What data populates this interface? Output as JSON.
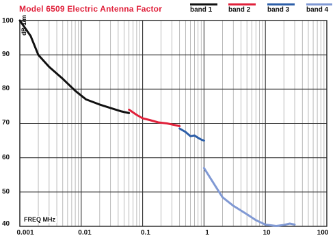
{
  "chart_data": {
    "type": "line",
    "title": "Model 6509 Electric Antenna Factor",
    "ylabel": "dB 1/m",
    "xlabel": "FREQ  MHz",
    "xscale": "log",
    "xlim": [
      0.001,
      100
    ],
    "ylim": [
      40,
      100
    ],
    "xticks": [
      "0.001",
      "0.01",
      "0.1",
      "1",
      "10",
      "100"
    ],
    "yticks": [
      "40",
      "50",
      "60",
      "70",
      "80",
      "90",
      "100"
    ],
    "grid": true,
    "legend_position": "top-right",
    "series": [
      {
        "name": "band 1",
        "color": "#111111",
        "x": [
          0.001,
          0.0015,
          0.002,
          0.003,
          0.005,
          0.008,
          0.012,
          0.02,
          0.03,
          0.045,
          0.06
        ],
        "y": [
          100,
          95.5,
          90,
          86.5,
          83,
          79.5,
          77,
          75.5,
          74.5,
          73.5,
          73
        ]
      },
      {
        "name": "band 2",
        "color": "#e0203a",
        "x": [
          0.06,
          0.08,
          0.1,
          0.13,
          0.18,
          0.25,
          0.32,
          0.4
        ],
        "y": [
          74,
          72.5,
          71.5,
          71,
          70.3,
          70,
          69.6,
          69.2
        ]
      },
      {
        "name": "band 3",
        "color": "#2c5ea8",
        "x": [
          0.4,
          0.5,
          0.6,
          0.7,
          0.8,
          0.9,
          1.0
        ],
        "y": [
          68.5,
          67.5,
          66.3,
          66.5,
          65.8,
          65.3,
          65
        ]
      },
      {
        "name": "band 4",
        "color": "#8099d4",
        "x": [
          1.0,
          1.5,
          2,
          3,
          5,
          7,
          10,
          15,
          20,
          25,
          30
        ],
        "y": [
          57,
          52,
          48.5,
          46,
          43.5,
          41.8,
          40.5,
          40.1,
          40.4,
          40.8,
          40.5
        ]
      }
    ]
  }
}
